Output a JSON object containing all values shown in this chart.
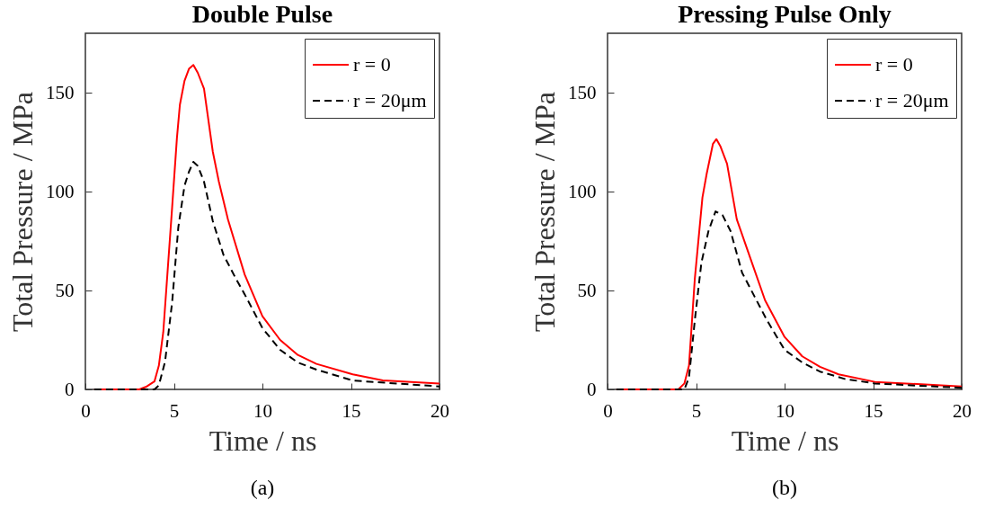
{
  "chart_data": [
    {
      "type": "line",
      "title": "Double Pulse",
      "xlabel": "Time / ns",
      "ylabel": "Total Pressure / MPa",
      "xlim": [
        0,
        20
      ],
      "xticks": [
        0,
        5,
        10,
        15,
        20
      ],
      "ylim": [
        0,
        180
      ],
      "yticks": [
        0,
        50,
        100,
        150
      ],
      "legend": "top right",
      "grid": false,
      "annotations": [
        "(a)"
      ],
      "series": [
        {
          "name": "r = 0",
          "color": "#ff0000",
          "line_style": "solid",
          "x": [
            0.5,
            3.05,
            3.47,
            3.9,
            4.15,
            4.4,
            4.9,
            5.17,
            5.34,
            5.6,
            5.85,
            6.1,
            6.35,
            6.7,
            7.2,
            7.54,
            8.05,
            9.0,
            10.0,
            11.0,
            12.0,
            13.05,
            15.1,
            16.8,
            20
          ],
          "values": [
            0,
            0,
            1.5,
            4,
            12,
            29,
            92,
            127,
            144,
            156,
            162,
            164,
            160,
            152,
            120,
            105,
            86,
            58,
            37,
            25,
            17.4,
            12.9,
            7.6,
            4.5,
            3
          ]
        },
        {
          "name": "r = 20μm",
          "color": "#000000",
          "line_style": "dashed",
          "x": [
            0.5,
            3.9,
            4.15,
            4.5,
            4.9,
            5.25,
            5.6,
            5.85,
            6.1,
            6.35,
            6.7,
            7.2,
            7.8,
            8.5,
            9.0,
            10.0,
            11.0,
            12.0,
            13.05,
            15.1,
            20
          ],
          "values": [
            0,
            0,
            2,
            14,
            44,
            82,
            103,
            110,
            115,
            113,
            105,
            85,
            68,
            56,
            48,
            31,
            20,
            13.6,
            10,
            4.5,
            1.5
          ]
        }
      ]
    },
    {
      "type": "line",
      "title": "Pressing Pulse Only",
      "xlabel": "Time / ns",
      "ylabel": "Total Pressure / MPa",
      "xlim": [
        0,
        20
      ],
      "xticks": [
        0,
        5,
        10,
        15,
        20
      ],
      "ylim": [
        0,
        180
      ],
      "yticks": [
        0,
        50,
        100,
        150
      ],
      "legend": "top right",
      "grid": false,
      "annotations": [
        "(b)"
      ],
      "series": [
        {
          "name": "r = 0",
          "color": "#ff0000",
          "line_style": "solid",
          "x": [
            0.5,
            4.0,
            4.34,
            4.6,
            4.93,
            5.36,
            5.6,
            5.95,
            6.15,
            6.37,
            6.75,
            7.3,
            8.0,
            8.9,
            10.0,
            11.0,
            12.0,
            13.05,
            15.1,
            20
          ],
          "values": [
            0,
            0,
            3,
            12,
            56,
            97,
            109,
            124,
            126.5,
            123,
            114,
            86,
            68,
            45,
            26.5,
            16.7,
            11.4,
            7.6,
            3.8,
            1.5
          ]
        },
        {
          "name": "r = 20μm",
          "color": "#000000",
          "line_style": "dashed",
          "x": [
            0.5,
            4.34,
            4.6,
            4.93,
            5.3,
            5.7,
            6.1,
            6.5,
            6.95,
            7.6,
            8.3,
            9.0,
            10.0,
            11.0,
            12.0,
            13.4,
            15.1,
            20
          ],
          "values": [
            0,
            0,
            6,
            35,
            64,
            80,
            90,
            88,
            80,
            59,
            47,
            35,
            20,
            13.6,
            9,
            5.3,
            3,
            0.8
          ]
        }
      ]
    }
  ]
}
